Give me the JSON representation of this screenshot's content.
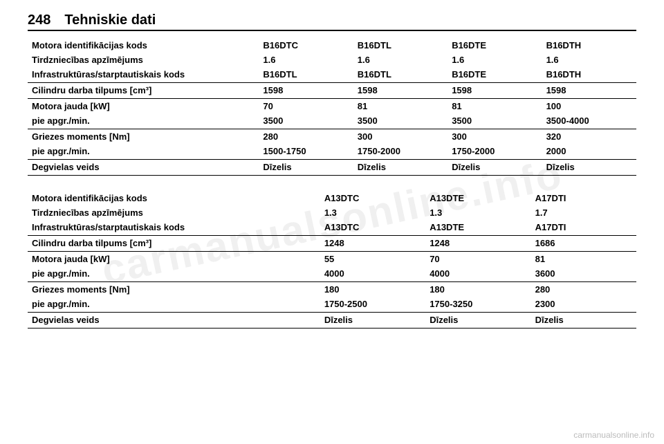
{
  "page": {
    "number": "248",
    "title": "Tehniskie dati"
  },
  "watermark": "carmanualsonline.info",
  "footer": "carmanualsonline.info",
  "labels": {
    "engine_id": "Motora identifikācijas kods",
    "sales_desig": "Tirdzniecības apzīmējums",
    "intl_code": "Infrastruktūras/starptautiskais kods",
    "displacement": "Cilindru darba tilpums [cm³]",
    "power": "Motora jauda [kW]",
    "at_rpm": "pie apgr./min.",
    "torque": "Griezes moments [Nm]",
    "fuel": "Degvielas veids"
  },
  "table1": {
    "cols": [
      "B16DTC",
      "B16DTL",
      "B16DTE",
      "B16DTH"
    ],
    "sales": [
      "1.6",
      "1.6",
      "1.6",
      "1.6"
    ],
    "intl": [
      "B16DTL",
      "B16DTL",
      "B16DTE",
      "B16DTH"
    ],
    "disp": [
      "1598",
      "1598",
      "1598",
      "1598"
    ],
    "power": [
      "70",
      "81",
      "81",
      "100"
    ],
    "power_rpm": [
      "3500",
      "3500",
      "3500",
      "3500-4000"
    ],
    "torque": [
      "280",
      "300",
      "300",
      "320"
    ],
    "torque_rpm": [
      "1500-1750",
      "1750-2000",
      "1750-2000",
      "2000"
    ],
    "fuel": [
      "Dīzelis",
      "Dīzelis",
      "Dīzelis",
      "Dīzelis"
    ]
  },
  "table2": {
    "cols": [
      "A13DTC",
      "A13DTE",
      "A17DTI"
    ],
    "sales": [
      "1.3",
      "1.3",
      "1.7"
    ],
    "intl": [
      "A13DTC",
      "A13DTE",
      "A17DTI"
    ],
    "disp": [
      "1248",
      "1248",
      "1686"
    ],
    "power": [
      "55",
      "70",
      "81"
    ],
    "power_rpm": [
      "4000",
      "4000",
      "3600"
    ],
    "torque": [
      "180",
      "180",
      "280"
    ],
    "torque_rpm": [
      "1750-2500",
      "1750-3250",
      "2300"
    ],
    "fuel": [
      "Dīzelis",
      "Dīzelis",
      "Dīzelis"
    ]
  }
}
